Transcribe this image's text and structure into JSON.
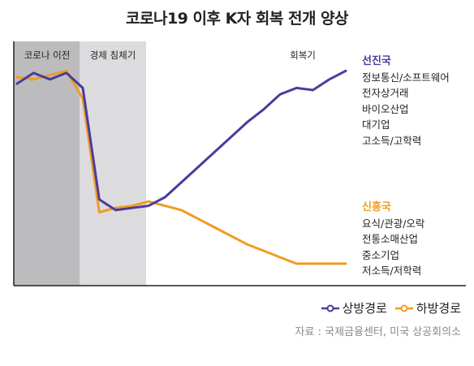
{
  "title": "코로나19 이후 K자 회복 전개 양상",
  "source": "자료 : 국제금융센터, 미국 상공회의소",
  "chart_data": {
    "type": "line",
    "phases": [
      "코로나 이전",
      "경제 침체기",
      "회복기"
    ],
    "x": [
      0,
      1,
      2,
      3,
      4,
      5,
      6,
      7,
      8,
      9,
      10,
      11,
      12,
      13,
      14,
      15,
      16,
      17,
      18,
      19,
      20
    ],
    "ylim": [
      0,
      100
    ],
    "grid": false,
    "legend_position": "bottom-right",
    "series": [
      {
        "name": "상방경로",
        "color": "#4b3c9c",
        "values": [
          92,
          97,
          94,
          97,
          90,
          38,
          33,
          34,
          35,
          39,
          46,
          53,
          60,
          67,
          74,
          80,
          87,
          90,
          89,
          94,
          98
        ],
        "group_label": "선진국",
        "group_label_color": "#4b3c9c",
        "labels": [
          "정보통신/소프트웨어",
          "전자상거래",
          "바이오산업",
          "대기업",
          "고소득/고학력"
        ]
      },
      {
        "name": "하방경로",
        "color": "#f09c22",
        "values": [
          95,
          94,
          96,
          98,
          85,
          32,
          34,
          35,
          37,
          35,
          33,
          29,
          25,
          21,
          17,
          14,
          11,
          8,
          8,
          8,
          8
        ],
        "group_label": "신흥국",
        "group_label_color": "#f09c22",
        "labels": [
          "요식/관광/오락",
          "전통소매산업",
          "중소기업",
          "저소득/저학력"
        ]
      }
    ]
  },
  "colors": {
    "phase1_bg": "#bcbcbe",
    "phase2_bg": "#dcdcde",
    "phase3_bg": "#ffffff",
    "axis": "#222222"
  }
}
